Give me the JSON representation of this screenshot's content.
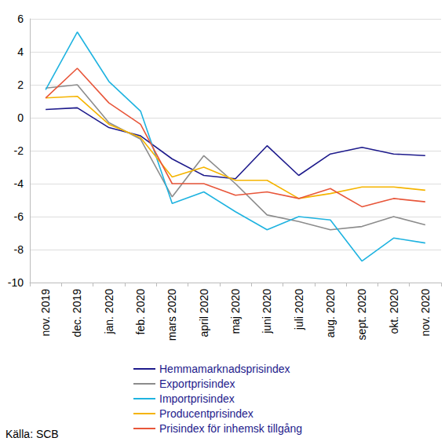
{
  "chart_data": {
    "type": "line",
    "source": "Källa: SCB",
    "categories": [
      "nov. 2019",
      "dec. 2019",
      "jan. 2020",
      "feb. 2020",
      "mars 2020",
      "april 2020",
      "maj 2020",
      "juni 2020",
      "juli 2020",
      "aug. 2020",
      "sept. 2020",
      "okt. 2020",
      "nov. 2020"
    ],
    "series": [
      {
        "name": "Hemmamarknadsprisindex",
        "color": "#1e1b8c",
        "values": [
          0.5,
          0.6,
          -0.6,
          -1.1,
          -2.5,
          -3.5,
          -3.7,
          -1.7,
          -3.5,
          -2.2,
          -1.8,
          -2.2,
          -2.3
        ]
      },
      {
        "name": "Exportprisindex",
        "color": "#8c8c8c",
        "values": [
          1.8,
          2.0,
          -0.3,
          -1.3,
          -4.8,
          -2.3,
          -4.0,
          -5.9,
          -6.3,
          -6.8,
          -6.6,
          -6.0,
          -6.5
        ]
      },
      {
        "name": "Importprisindex",
        "color": "#1fb3e0",
        "values": [
          1.7,
          5.2,
          2.2,
          0.4,
          -5.2,
          -4.5,
          -5.7,
          -6.8,
          -6.0,
          -6.2,
          -8.7,
          -7.3,
          -7.6
        ]
      },
      {
        "name": "Producentprisindex",
        "color": "#f5b400",
        "values": [
          1.2,
          1.3,
          -0.4,
          -1.2,
          -3.6,
          -3.0,
          -3.8,
          -3.8,
          -4.9,
          -4.6,
          -4.2,
          -4.2,
          -4.4
        ]
      },
      {
        "name": "Prisindex för inhemsk tillgång",
        "color": "#e8563a",
        "values": [
          1.2,
          3.0,
          0.9,
          -0.4,
          -4.0,
          -4.0,
          -4.7,
          -4.5,
          -4.9,
          -4.3,
          -5.4,
          -4.9,
          -5.1
        ]
      }
    ],
    "ylim": [
      -10,
      6
    ],
    "yticks": [
      -10,
      -8,
      -6,
      -4,
      -2,
      0,
      2,
      4,
      6
    ],
    "grid": true,
    "legend": "bottom"
  }
}
